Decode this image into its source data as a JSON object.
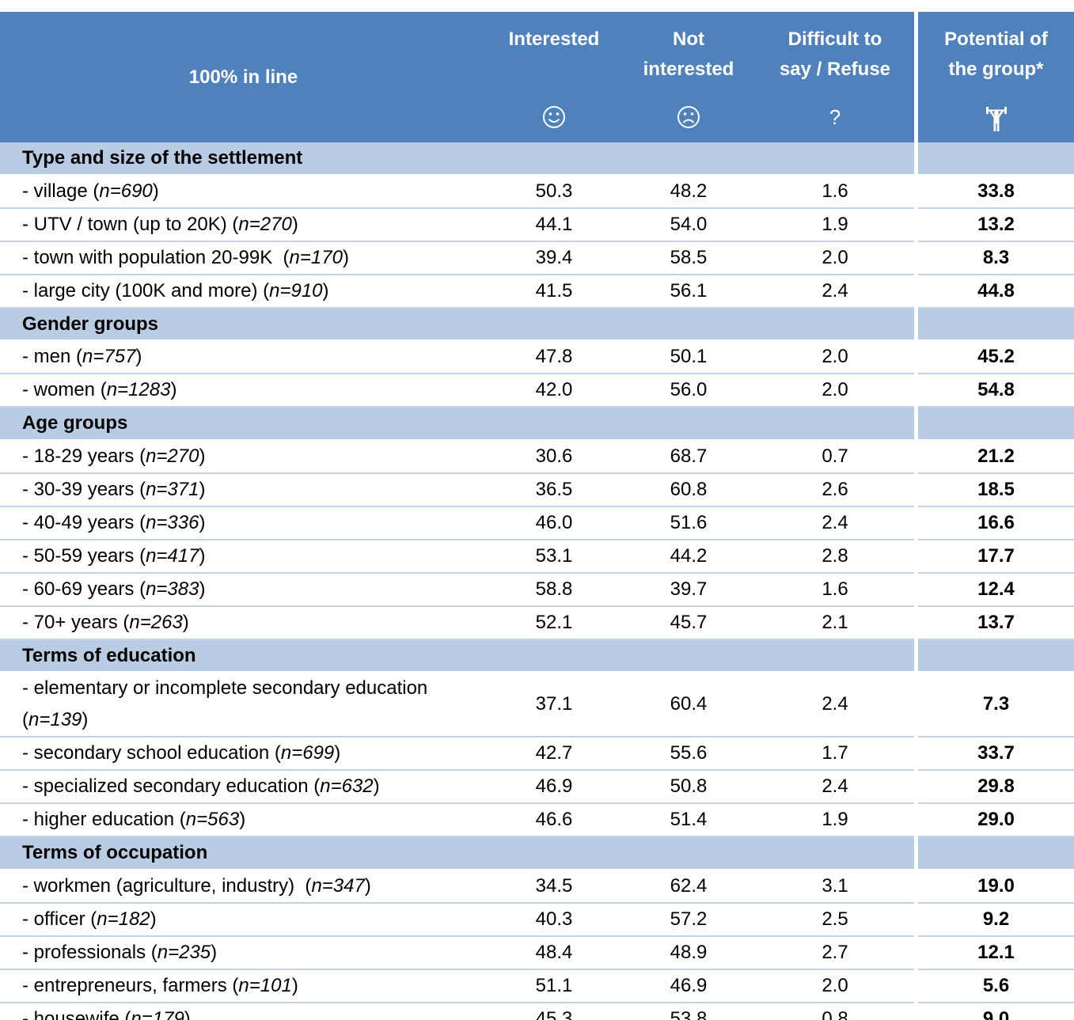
{
  "header": {
    "title": "100% in line",
    "columns": [
      {
        "lines": [
          "Interested"
        ]
      },
      {
        "lines": [
          "Not",
          "interested"
        ]
      },
      {
        "lines": [
          "Difficult to",
          "say / Refuse"
        ],
        "symbol": "?"
      },
      {
        "lines": [
          "Potential of",
          "the group*"
        ]
      }
    ]
  },
  "sections": [
    {
      "title": "Type and size of the settlement",
      "rows": [
        {
          "label": "- village (",
          "n": "n=690",
          "close": ")",
          "values": [
            "50.3",
            "48.2",
            "1.6",
            "33.8"
          ]
        },
        {
          "label": "- UTV / town (up to 20K) (",
          "n": "n=270",
          "close": ")",
          "values": [
            "44.1",
            "54.0",
            "1.9",
            "13.2"
          ]
        },
        {
          "label": "- town with population 20-99K  (",
          "n": "n=170",
          "close": ")",
          "values": [
            "39.4",
            "58.5",
            "2.0",
            "8.3"
          ]
        },
        {
          "label": "- large city (100K and more) (",
          "n": "n=910",
          "close": ")",
          "values": [
            "41.5",
            "56.1",
            "2.4",
            "44.8"
          ]
        }
      ]
    },
    {
      "title": "Gender groups",
      "rows": [
        {
          "label": "- men (",
          "n": "n=757",
          "close": ")",
          "values": [
            "47.8",
            "50.1",
            "2.0",
            "45.2"
          ]
        },
        {
          "label": "- women (",
          "n": "n=1283",
          "close": ")",
          "values": [
            "42.0",
            "56.0",
            "2.0",
            "54.8"
          ]
        }
      ]
    },
    {
      "title": "Age groups",
      "rows": [
        {
          "label": "- 18-29 years (",
          "n": "n=270",
          "close": ")",
          "values": [
            "30.6",
            "68.7",
            "0.7",
            "21.2"
          ]
        },
        {
          "label": "- 30-39 years (",
          "n": "n=371",
          "close": ")",
          "values": [
            "36.5",
            "60.8",
            "2.6",
            "18.5"
          ]
        },
        {
          "label": "- 40-49 years (",
          "n": "n=336",
          "close": ")",
          "values": [
            "46.0",
            "51.6",
            "2.4",
            "16.6"
          ]
        },
        {
          "label": "- 50-59 years (",
          "n": "n=417",
          "close": ")",
          "values": [
            "53.1",
            "44.2",
            "2.8",
            "17.7"
          ]
        },
        {
          "label": "- 60-69 years (",
          "n": "n=383",
          "close": ")",
          "values": [
            "58.8",
            "39.7",
            "1.6",
            "12.4"
          ]
        },
        {
          "label": "- 70+ years (",
          "n": "n=263",
          "close": ")",
          "values": [
            "52.1",
            "45.7",
            "2.1",
            "13.7"
          ]
        }
      ]
    },
    {
      "title": "Terms of education",
      "rows": [
        {
          "label": "- elementary or incomplete secondary education (",
          "n": "n=139",
          "close": ")",
          "values": [
            "37.1",
            "60.4",
            "2.4",
            "7.3"
          ]
        },
        {
          "label": "- secondary school education (",
          "n": "n=699",
          "close": ")",
          "values": [
            "42.7",
            "55.6",
            "1.7",
            "33.7"
          ]
        },
        {
          "label": "- specialized secondary education (",
          "n": "n=632",
          "close": ")",
          "values": [
            "46.9",
            "50.8",
            "2.4",
            "29.8"
          ]
        },
        {
          "label": "- higher education (",
          "n": "n=563",
          "close": ")",
          "values": [
            "46.6",
            "51.4",
            "1.9",
            "29.0"
          ]
        }
      ]
    },
    {
      "title": "Terms of occupation",
      "rows": [
        {
          "label": "- workmen (agriculture, industry)  (",
          "n": "n=347",
          "close": ")",
          "values": [
            "34.5",
            "62.4",
            "3.1",
            "19.0"
          ]
        },
        {
          "label": "- officer (",
          "n": "n=182",
          "close": ")",
          "values": [
            "40.3",
            "57.2",
            "2.5",
            "9.2"
          ]
        },
        {
          "label": "- professionals (",
          "n": "n=235",
          "close": ")",
          "values": [
            "48.4",
            "48.9",
            "2.7",
            "12.1"
          ]
        },
        {
          "label": "- entrepreneurs, farmers (",
          "n": "n=101",
          "close": ")",
          "values": [
            "51.1",
            "46.9",
            "2.0",
            "5.6"
          ]
        },
        {
          "label": "- housewife (",
          "n": "n=179",
          "close": ")",
          "values": [
            "45.3",
            "53.8",
            "0.8",
            "9.0"
          ]
        }
      ]
    }
  ]
}
